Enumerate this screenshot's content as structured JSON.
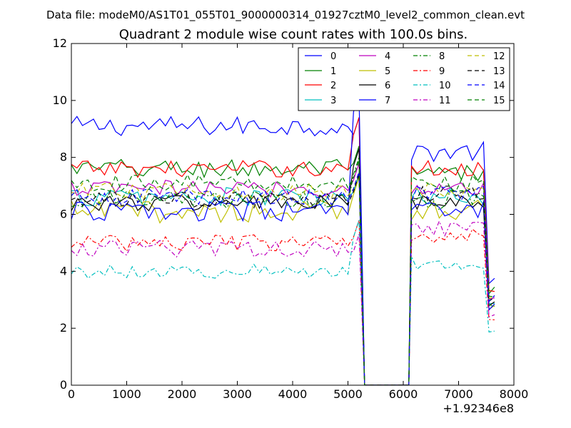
{
  "chart_data": {
    "type": "line",
    "suptitle": "Data file: modeM0/AS1T01_055T01_9000000314_01927cztM0_level2_common_clean.evt",
    "title": "Quadrant 2 module wise count rates with 100.0s bins.",
    "xlabel": "",
    "ylabel": "",
    "x_offset_label": "+1.92346e8",
    "xlim": [
      0,
      8000
    ],
    "ylim": [
      0,
      12
    ],
    "x_ticks": [
      0,
      1000,
      2000,
      3000,
      4000,
      5000,
      6000,
      7000,
      8000
    ],
    "y_ticks": [
      0,
      2,
      4,
      6,
      8,
      10,
      12
    ],
    "x_tick_labels": [
      "0",
      "1000",
      "2000",
      "3000",
      "4000",
      "5000",
      "6000",
      "7000",
      "8000"
    ],
    "y_tick_labels": [
      "0",
      "2",
      "4",
      "6",
      "8",
      "10",
      "12"
    ],
    "grid": false,
    "legend_position": "top-right",
    "segments": [
      {
        "x_start": 0,
        "x_end": 5250
      },
      {
        "x_start": 5300,
        "x_end": 6100
      },
      {
        "x_start": 6150,
        "x_end": 7650
      }
    ],
    "series": [
      {
        "name": "0",
        "color": "#0000ff",
        "dash": "solid",
        "levels": [
          9.1,
          0.0,
          8.2
        ],
        "peak": 9.4,
        "noise": 0.35
      },
      {
        "name": "1",
        "color": "#008000",
        "dash": "solid",
        "levels": [
          7.6,
          0.0,
          7.4
        ],
        "peak": 8.4,
        "noise": 0.35
      },
      {
        "name": "2",
        "color": "#ff0000",
        "dash": "solid",
        "levels": [
          7.6,
          0.0,
          7.6
        ],
        "peak": 9.4,
        "noise": 0.3
      },
      {
        "name": "3",
        "color": "#00bfbf",
        "dash": "solid",
        "levels": [
          6.6,
          0.0,
          6.6
        ],
        "peak": 7.4,
        "noise": 0.35
      },
      {
        "name": "4",
        "color": "#bf00bf",
        "dash": "solid",
        "levels": [
          6.9,
          0.0,
          6.9
        ],
        "peak": 7.8,
        "noise": 0.3
      },
      {
        "name": "5",
        "color": "#bfbf00",
        "dash": "solid",
        "levels": [
          6.1,
          0.0,
          6.2
        ],
        "peak": 7.3,
        "noise": 0.4
      },
      {
        "name": "6",
        "color": "#000000",
        "dash": "solid",
        "levels": [
          6.4,
          0.0,
          6.4
        ],
        "peak": 8.3,
        "noise": 0.3
      },
      {
        "name": "7",
        "color": "#0000ff",
        "dash": "solid",
        "levels": [
          6.1,
          0.0,
          6.1
        ],
        "peak": 10.2,
        "noise": 0.35
      },
      {
        "name": "8",
        "color": "#008000",
        "dash": "dashdot",
        "levels": [
          6.5,
          0.0,
          6.5
        ],
        "peak": 8.0,
        "noise": 0.35
      },
      {
        "name": "9",
        "color": "#ff0000",
        "dash": "dashdot",
        "levels": [
          5.0,
          0.0,
          5.3
        ],
        "peak": 5.8,
        "noise": 0.3
      },
      {
        "name": "10",
        "color": "#00bfbf",
        "dash": "dashdot",
        "levels": [
          4.0,
          0.0,
          4.3
        ],
        "peak": 5.8,
        "noise": 0.25
      },
      {
        "name": "11",
        "color": "#bf00bf",
        "dash": "dashdot",
        "levels": [
          4.8,
          0.0,
          5.5
        ],
        "peak": 5.3,
        "noise": 0.3
      },
      {
        "name": "12",
        "color": "#bfbf00",
        "dash": "dashed",
        "levels": [
          6.8,
          0.0,
          6.9
        ],
        "peak": 7.5,
        "noise": 0.3
      },
      {
        "name": "13",
        "color": "#000000",
        "dash": "dashed",
        "levels": [
          6.5,
          0.0,
          6.7
        ],
        "peak": 7.4,
        "noise": 0.3
      },
      {
        "name": "14",
        "color": "#0000ff",
        "dash": "dashed",
        "levels": [
          6.6,
          0.0,
          6.7
        ],
        "peak": 7.5,
        "noise": 0.3
      },
      {
        "name": "15",
        "color": "#008000",
        "dash": "dashed",
        "levels": [
          7.1,
          0.0,
          7.1
        ],
        "peak": 7.9,
        "noise": 0.3
      }
    ]
  }
}
